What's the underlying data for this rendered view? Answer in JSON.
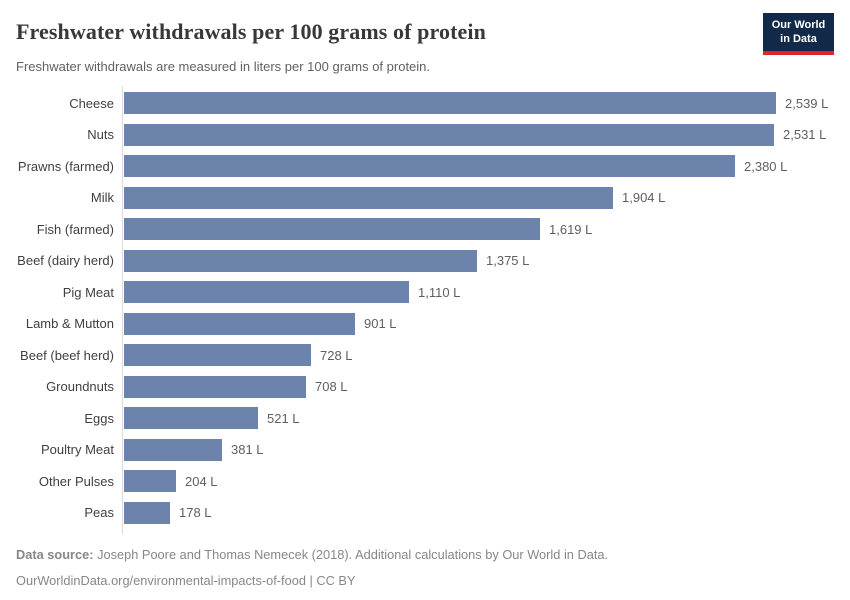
{
  "header": {
    "title": "Freshwater withdrawals per 100 grams of protein",
    "subtitle": "Freshwater withdrawals are measured in liters per 100 grams of protein.",
    "logo": {
      "line1": "Our World",
      "line2": "in Data",
      "bg_color": "#12294a",
      "accent_color": "#e02428"
    }
  },
  "chart_data": {
    "type": "bar",
    "orientation": "horizontal",
    "title": "Freshwater withdrawals per 100 grams of protein",
    "xlabel": "",
    "ylabel": "",
    "unit": "L",
    "xlim": [
      0,
      2539
    ],
    "grid": false,
    "legend": false,
    "bar_color": "#6c84ab",
    "categories": [
      "Cheese",
      "Nuts",
      "Prawns (farmed)",
      "Milk",
      "Fish (farmed)",
      "Beef (dairy herd)",
      "Pig Meat",
      "Lamb & Mutton",
      "Beef (beef herd)",
      "Groundnuts",
      "Eggs",
      "Poultry Meat",
      "Other Pulses",
      "Peas"
    ],
    "values": [
      2539,
      2531,
      2380,
      1904,
      1619,
      1375,
      1110,
      901,
      728,
      708,
      521,
      381,
      204,
      178
    ],
    "value_labels": [
      "2,539 L",
      "2,531 L",
      "2,380 L",
      "1,904 L",
      "1,619 L",
      "1,375 L",
      "1,110 L",
      "901 L",
      "728 L",
      "708 L",
      "521 L",
      "381 L",
      "204 L",
      "178 L"
    ]
  },
  "footer": {
    "source_label": "Data source:",
    "source_text": " Joseph Poore and Thomas Nemecek (2018). Additional calculations by Our World in Data.",
    "link_line": "OurWorldinData.org/environmental-impacts-of-food | CC BY"
  }
}
